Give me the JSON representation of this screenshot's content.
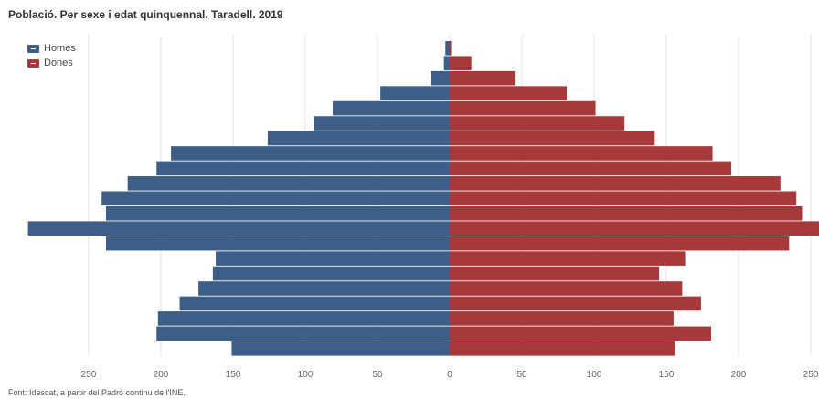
{
  "title": "Població. Per sexe i edat quinquennal. Taradell. 2019",
  "source": "Font: Idescat, a partir del Padró continu de l'INE.",
  "colors": {
    "homes": "#3d5f87",
    "dones": "#a8393a",
    "grid": "#e6e6e6"
  },
  "legend": [
    {
      "label": "Homes",
      "color": "#3d5f87"
    },
    {
      "label": "Dones",
      "color": "#a8393a"
    }
  ],
  "chart_data": {
    "type": "bar",
    "orientation": "horizontal-pyramid",
    "title": "Població. Per sexe i edat quinquennal. Taradell. 2019",
    "xlim": [
      -250,
      250
    ],
    "xticks": [
      "250",
      "200",
      "150",
      "100",
      "50",
      "0",
      "50",
      "100",
      "150",
      "200",
      "250"
    ],
    "grid": true,
    "legend_position": "top-left",
    "series": [
      {
        "name": "Homes",
        "values": [
          3,
          4,
          13,
          48,
          81,
          94,
          126,
          193,
          203,
          223,
          241,
          238,
          292,
          238,
          162,
          164,
          174,
          187,
          202,
          203,
          151
        ]
      },
      {
        "name": "Dones",
        "values": [
          1,
          15,
          45,
          81,
          101,
          121,
          142,
          182,
          195,
          229,
          240,
          244,
          262,
          235,
          163,
          145,
          161,
          174,
          155,
          181,
          156
        ]
      }
    ]
  }
}
